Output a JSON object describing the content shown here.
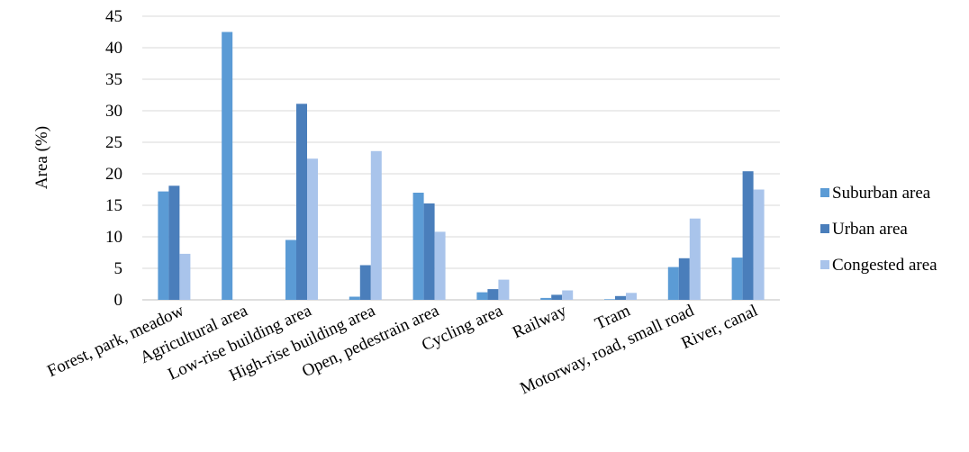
{
  "chart_data": {
    "type": "bar",
    "title": "",
    "xlabel": "",
    "ylabel": "Area (%)",
    "ylim": [
      0,
      45
    ],
    "yticks": [
      0,
      5,
      10,
      15,
      20,
      25,
      30,
      35,
      40,
      45
    ],
    "grid": true,
    "legend_position": "right",
    "categories": [
      "Forest, park, meadow",
      "Agricultural area",
      "Low-rise building area",
      "High-rise building area",
      "Open, pedestrain area",
      "Cycling area",
      "Railway",
      "Tram",
      "Motorway, road, small road",
      "River, canal"
    ],
    "series": [
      {
        "name": "Suburban area",
        "color": "#5B9BD5",
        "values": [
          17.2,
          42.5,
          9.5,
          0.5,
          17.0,
          1.2,
          0.3,
          0.1,
          5.2,
          6.7
        ]
      },
      {
        "name": "Urban area",
        "color": "#4A7EBB",
        "values": [
          18.1,
          0,
          31.1,
          5.5,
          15.3,
          1.7,
          0.8,
          0.6,
          6.6,
          20.4
        ]
      },
      {
        "name": "Congested area",
        "color": "#A9C4EB",
        "values": [
          7.3,
          0,
          22.4,
          23.6,
          10.8,
          3.2,
          1.5,
          1.1,
          12.9,
          17.5
        ]
      }
    ]
  }
}
